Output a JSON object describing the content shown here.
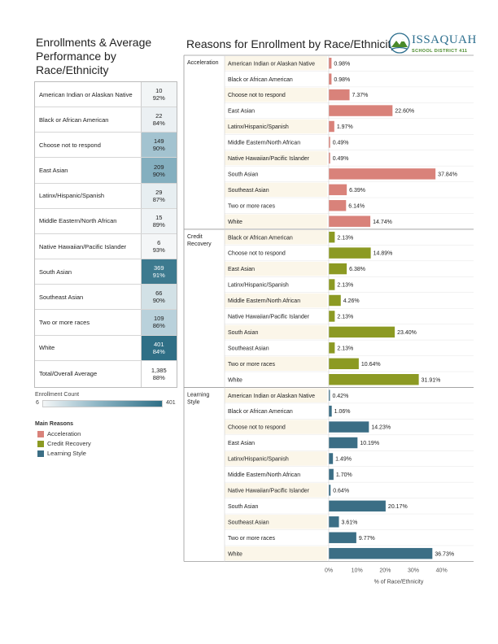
{
  "left_panel": {
    "title": "Enrollments & Average Performance by Race/Ethnicity",
    "rows": [
      {
        "label": "American Indian or Alaskan Native",
        "count": "10",
        "performance": "92%",
        "enrollment": 10
      },
      {
        "label": "Black or African American",
        "count": "22",
        "performance": "84%",
        "enrollment": 22
      },
      {
        "label": "Choose not to respond",
        "count": "149",
        "performance": "90%",
        "enrollment": 149
      },
      {
        "label": "East Asian",
        "count": "209",
        "performance": "90%",
        "enrollment": 209
      },
      {
        "label": "Latinx/Hispanic/Spanish",
        "count": "29",
        "performance": "87%",
        "enrollment": 29
      },
      {
        "label": "Middle Eastern/North African",
        "count": "15",
        "performance": "89%",
        "enrollment": 15
      },
      {
        "label": "Native Hawaiian/Pacific Islander",
        "count": "6",
        "performance": "93%",
        "enrollment": 6
      },
      {
        "label": "South Asian",
        "count": "369",
        "performance": "91%",
        "enrollment": 369
      },
      {
        "label": "Southeast Asian",
        "count": "66",
        "performance": "90%",
        "enrollment": 66
      },
      {
        "label": "Two or more races",
        "count": "109",
        "performance": "86%",
        "enrollment": 109
      },
      {
        "label": "White",
        "count": "401",
        "performance": "84%",
        "enrollment": 401
      },
      {
        "label": "Total/Overall Average",
        "count": "1,385",
        "performance": "88%",
        "enrollment": null
      }
    ],
    "legend": {
      "count_title": "Enrollment Count",
      "min_label": "6",
      "max_label": "401",
      "min": 6,
      "max": 401,
      "reasons_title": "Main Reasons",
      "reasons": [
        {
          "label": "Acceleration",
          "color": "#d9827a"
        },
        {
          "label": "Credit Recovery",
          "color": "#8c9a23"
        },
        {
          "label": "Learning Style",
          "color": "#3b6e85"
        }
      ]
    }
  },
  "logo": {
    "name": "ISSAQUAH",
    "sub": "SCHOOL DISTRICT 411"
  },
  "chart_data": {
    "type": "bar",
    "title": "Reasons for Enrollment by Race/Ethnicity",
    "xlabel": "% of Race/Ethnicity",
    "xlim": [
      0,
      45
    ],
    "x_ticks": [
      0,
      10,
      20,
      30,
      40
    ],
    "x_tick_labels": [
      "0%",
      "10%",
      "20%",
      "30%",
      "40%"
    ],
    "groups": [
      {
        "name": "Acceleration",
        "color": "#d9827a",
        "bars": [
          {
            "category": "American Indian or Alaskan Native",
            "value": 0.98,
            "label": "0.98%"
          },
          {
            "category": "Black or African American",
            "value": 0.98,
            "label": "0.98%"
          },
          {
            "category": "Choose not to respond",
            "value": 7.37,
            "label": "7.37%"
          },
          {
            "category": "East Asian",
            "value": 22.6,
            "label": "22.60%"
          },
          {
            "category": "Latinx/Hispanic/Spanish",
            "value": 1.97,
            "label": "1.97%"
          },
          {
            "category": "Middle Eastern/North African",
            "value": 0.49,
            "label": "0.49%"
          },
          {
            "category": "Native Hawaiian/Pacific Islander",
            "value": 0.49,
            "label": "0.49%"
          },
          {
            "category": "South Asian",
            "value": 37.84,
            "label": "37.84%"
          },
          {
            "category": "Southeast Asian",
            "value": 6.39,
            "label": "6.39%"
          },
          {
            "category": "Two or more races",
            "value": 6.14,
            "label": "6.14%"
          },
          {
            "category": "White",
            "value": 14.74,
            "label": "14.74%"
          }
        ]
      },
      {
        "name": "Credit Recovery",
        "color": "#8c9a23",
        "bars": [
          {
            "category": "Black or African American",
            "value": 2.13,
            "label": "2.13%"
          },
          {
            "category": "Choose not to respond",
            "value": 14.89,
            "label": "14.89%"
          },
          {
            "category": "East Asian",
            "value": 6.38,
            "label": "6.38%"
          },
          {
            "category": "Latinx/Hispanic/Spanish",
            "value": 2.13,
            "label": "2.13%"
          },
          {
            "category": "Middle Eastern/North African",
            "value": 4.26,
            "label": "4.26%"
          },
          {
            "category": "Native Hawaiian/Pacific Islander",
            "value": 2.13,
            "label": "2.13%"
          },
          {
            "category": "South Asian",
            "value": 23.4,
            "label": "23.40%"
          },
          {
            "category": "Southeast Asian",
            "value": 2.13,
            "label": "2.13%"
          },
          {
            "category": "Two or more races",
            "value": 10.64,
            "label": "10.64%"
          },
          {
            "category": "White",
            "value": 31.91,
            "label": "31.91%"
          }
        ]
      },
      {
        "name": "Learning Style",
        "color": "#3b6e85",
        "bars": [
          {
            "category": "American Indian or Alaskan Native",
            "value": 0.42,
            "label": "0.42%"
          },
          {
            "category": "Black or African American",
            "value": 1.06,
            "label": "1.06%"
          },
          {
            "category": "Choose not to respond",
            "value": 14.23,
            "label": "14.23%"
          },
          {
            "category": "East Asian",
            "value": 10.19,
            "label": "10.19%"
          },
          {
            "category": "Latinx/Hispanic/Spanish",
            "value": 1.49,
            "label": "1.49%"
          },
          {
            "category": "Middle Eastern/North African",
            "value": 1.7,
            "label": "1.70%"
          },
          {
            "category": "Native Hawaiian/Pacific Islander",
            "value": 0.64,
            "label": "0.64%"
          },
          {
            "category": "South Asian",
            "value": 20.17,
            "label": "20.17%"
          },
          {
            "category": "Southeast Asian",
            "value": 3.61,
            "label": "3.61%"
          },
          {
            "category": "Two or more races",
            "value": 9.77,
            "label": "9.77%"
          },
          {
            "category": "White",
            "value": 36.73,
            "label": "36.73%"
          }
        ]
      }
    ]
  }
}
